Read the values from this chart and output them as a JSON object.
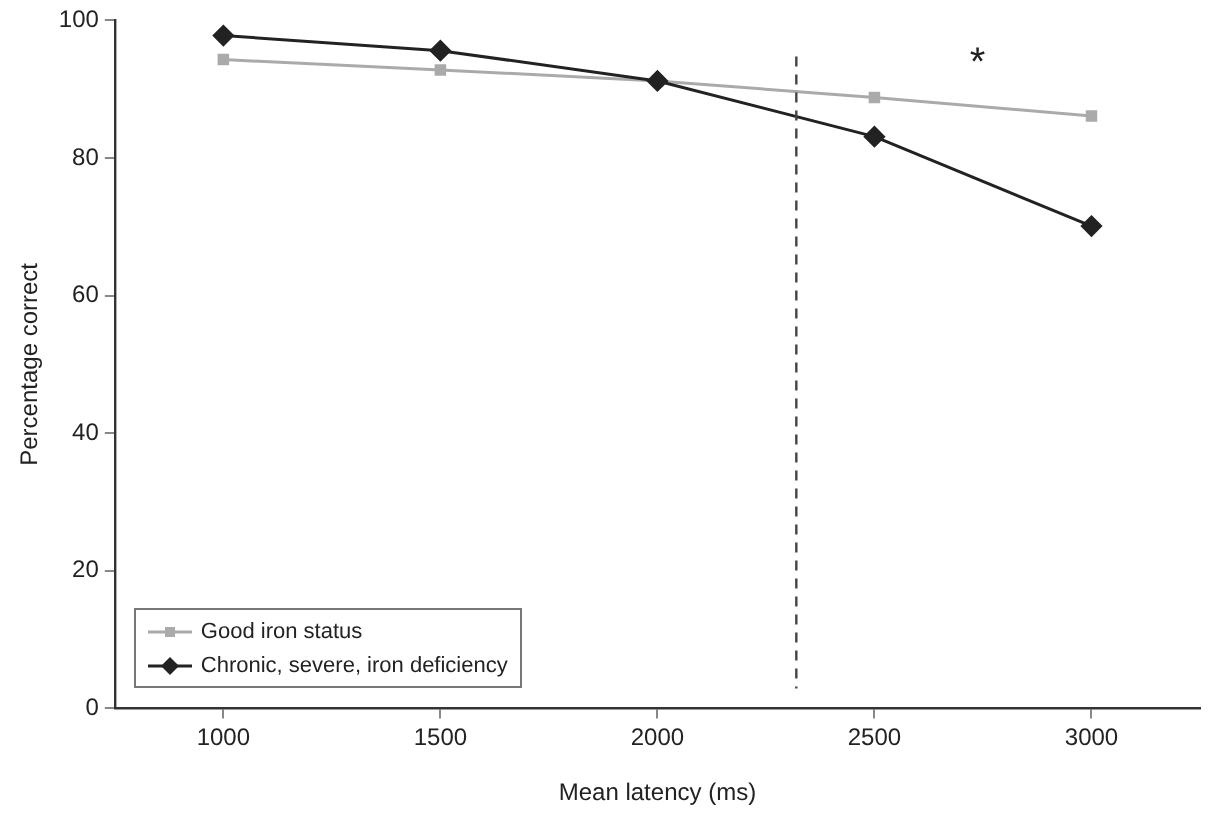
{
  "chart_data": {
    "type": "line",
    "xlabel": "Mean latency (ms)",
    "ylabel": "Percentage correct",
    "x": [
      1000,
      1500,
      2000,
      2500,
      3000
    ],
    "xlim": [
      750,
      3250
    ],
    "xticks": [
      1000,
      1500,
      2000,
      2500,
      3000
    ],
    "ylim": [
      0,
      100
    ],
    "yticks": [
      0,
      20,
      40,
      60,
      80,
      100
    ],
    "series": [
      {
        "name": "Good iron status",
        "color": "#aaaaaa",
        "marker": "square",
        "values": [
          94.3,
          92.8,
          91.2,
          88.8,
          86.1
        ]
      },
      {
        "name": "Chronic, severe, iron deficiency",
        "color": "#222222",
        "marker": "diamond",
        "values": [
          97.8,
          95.6,
          91.2,
          83.1,
          70.1
        ]
      }
    ],
    "ref_lines": [
      {
        "axis": "x",
        "value": 2320,
        "color": "#444444",
        "line_style": "dashed"
      }
    ],
    "annotations": [
      "*"
    ],
    "grid": false,
    "legend": "bottom left",
    "line_style": "solid"
  }
}
